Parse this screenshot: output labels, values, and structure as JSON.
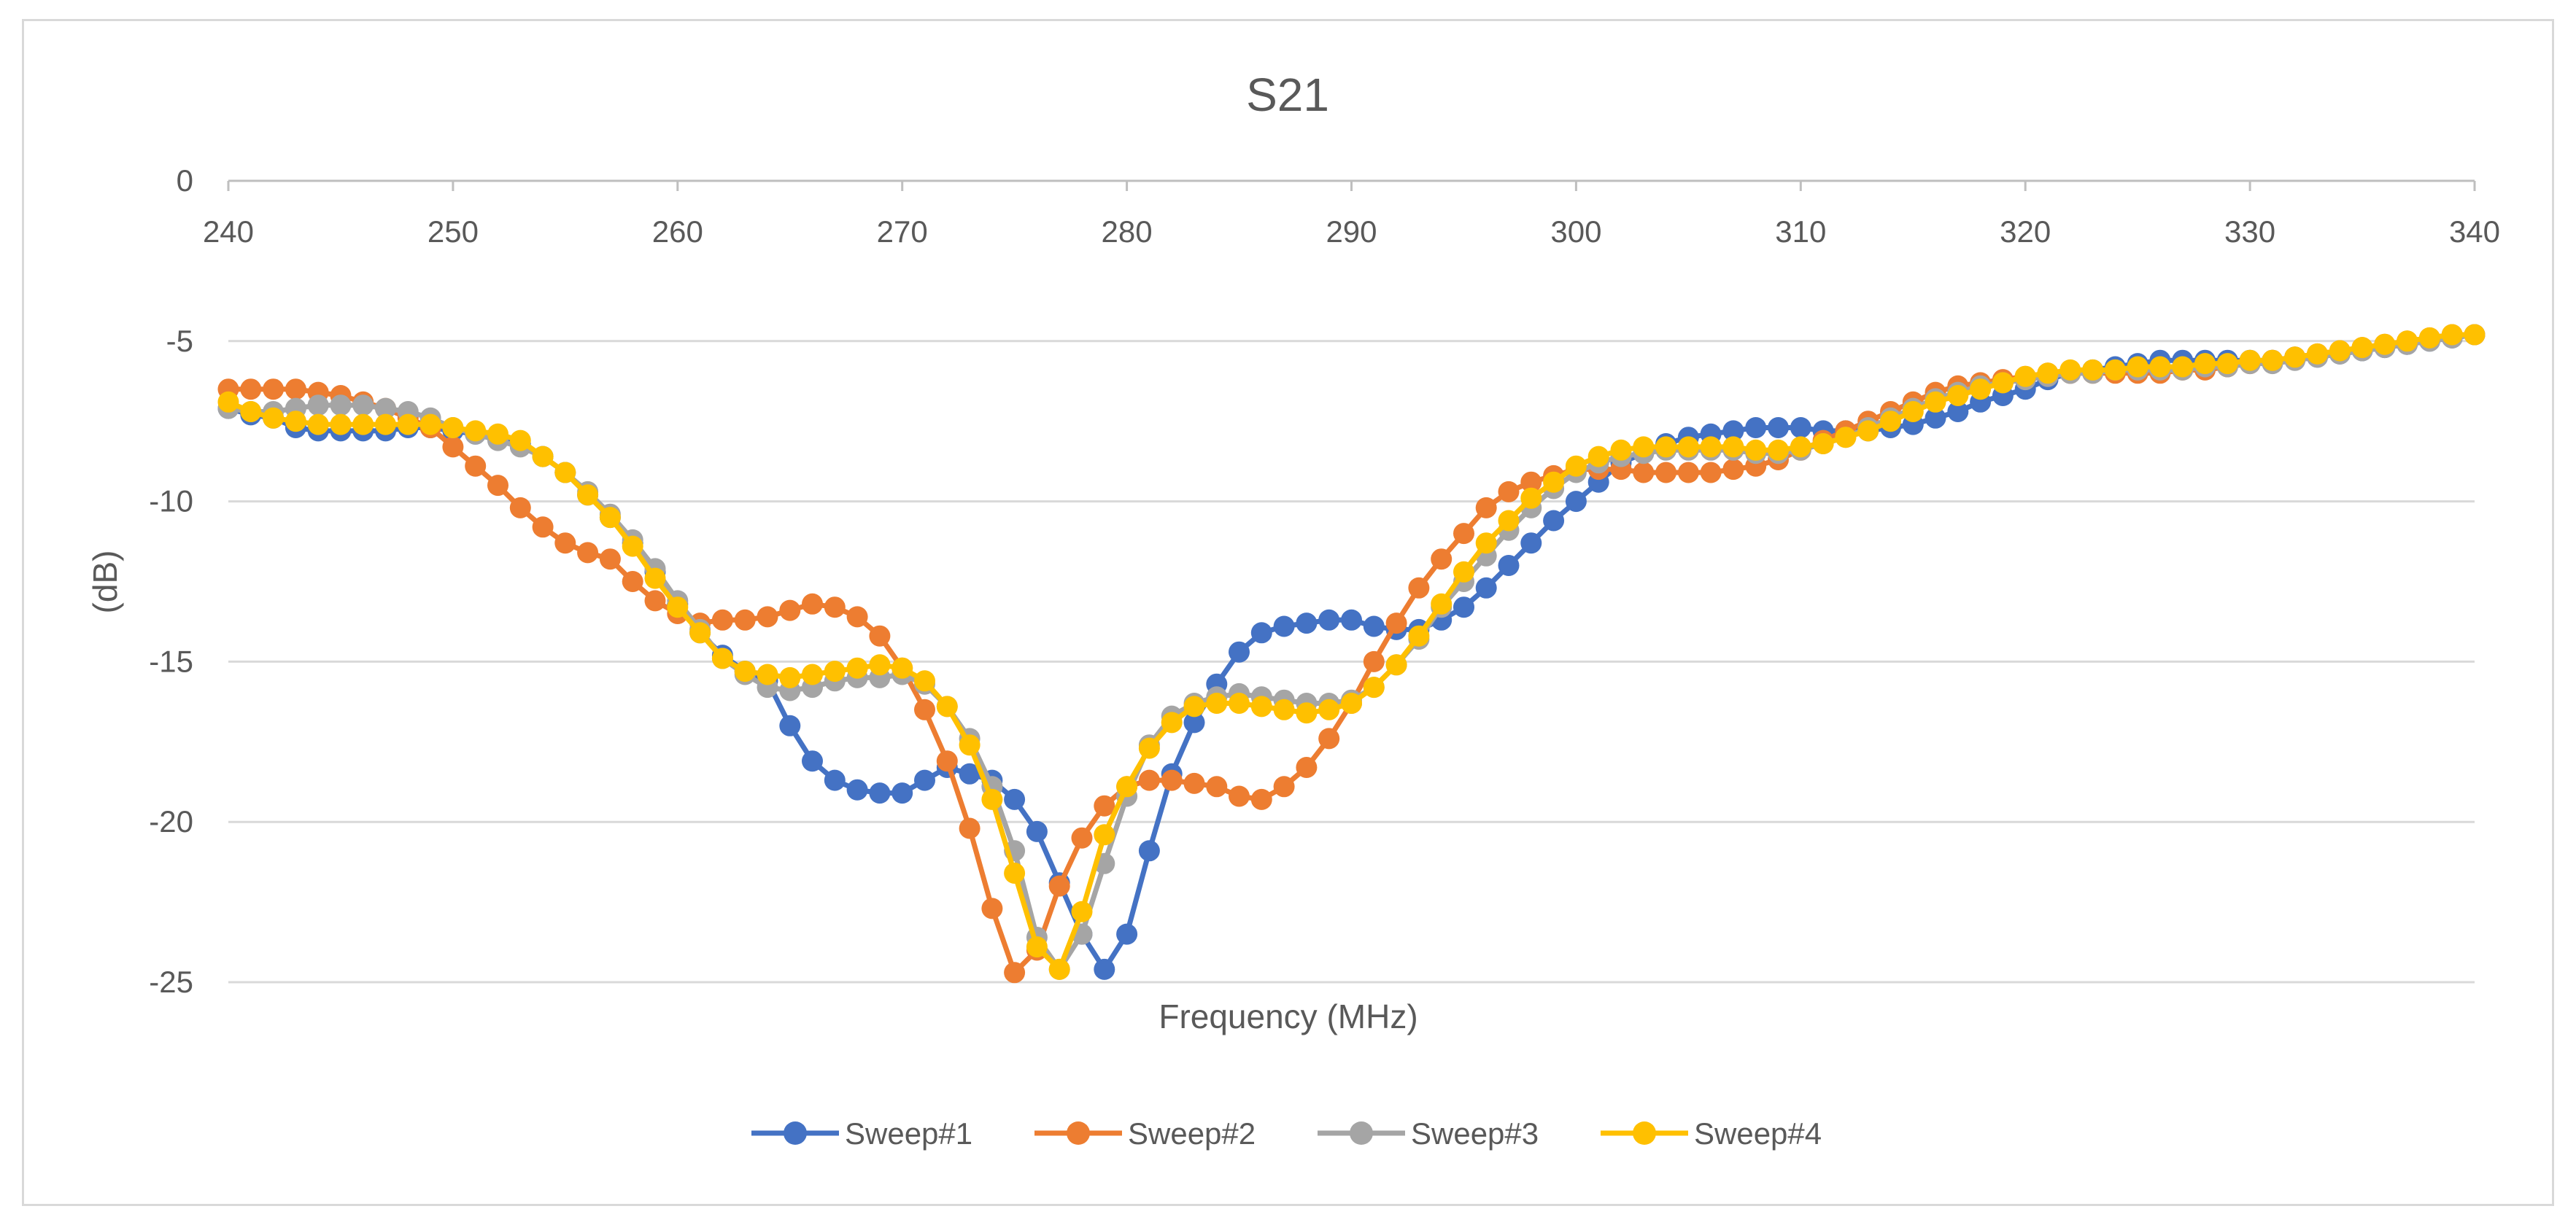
{
  "chart_data": {
    "type": "line",
    "title": "S21",
    "xlabel": "Frequency (MHz)",
    "ylabel": "(dB)",
    "xlim": [
      240,
      340
    ],
    "ylim": [
      -25,
      0
    ],
    "xticks": [
      240,
      250,
      260,
      270,
      280,
      290,
      300,
      310,
      320,
      330,
      340
    ],
    "yticks": [
      0,
      -5,
      -10,
      -15,
      -20,
      -25
    ],
    "grid": true,
    "legend_position": "bottom",
    "x": [
      240,
      241,
      242,
      243,
      244,
      245,
      246,
      247,
      248,
      249,
      250,
      251,
      252,
      253,
      254,
      255,
      256,
      257,
      258,
      259,
      260,
      261,
      262,
      263,
      264,
      265,
      266,
      267,
      268,
      269,
      270,
      271,
      272,
      273,
      274,
      275,
      276,
      277,
      278,
      279,
      280,
      281,
      282,
      283,
      284,
      285,
      286,
      287,
      288,
      289,
      290,
      291,
      292,
      293,
      294,
      295,
      296,
      297,
      298,
      299,
      300,
      301,
      302,
      303,
      304,
      305,
      306,
      307,
      308,
      309,
      310,
      311,
      312,
      313,
      314,
      315,
      316,
      317,
      318,
      319,
      320,
      321,
      322,
      323,
      324,
      325,
      326,
      327,
      328,
      329,
      330,
      331,
      332,
      333,
      334,
      335,
      336,
      337,
      338,
      339,
      340
    ],
    "series": [
      {
        "name": "Sweep#1",
        "color": "#4472c4",
        "values": [
          -7.1,
          -7.3,
          -7.4,
          -7.7,
          -7.8,
          -7.8,
          -7.8,
          -7.8,
          -7.7,
          -7.7,
          -7.8,
          -7.9,
          -8.0,
          -8.2,
          -8.6,
          -9.1,
          -9.8,
          -10.5,
          -11.3,
          -12.2,
          -13.2,
          -14.1,
          -14.8,
          -15.3,
          -15.6,
          -17.0,
          -18.1,
          -18.7,
          -19.0,
          -19.1,
          -19.1,
          -18.7,
          -18.3,
          -18.5,
          -18.7,
          -19.3,
          -20.3,
          -21.9,
          -23.5,
          -24.6,
          -23.5,
          -20.9,
          -18.5,
          -16.9,
          -15.7,
          -14.7,
          -14.1,
          -13.9,
          -13.8,
          -13.7,
          -13.7,
          -13.9,
          -14.0,
          -14.0,
          -13.7,
          -13.3,
          -12.7,
          -12.0,
          -11.3,
          -10.6,
          -10.0,
          -9.4,
          -8.8,
          -8.5,
          -8.2,
          -8.0,
          -7.9,
          -7.8,
          -7.7,
          -7.7,
          -7.7,
          -7.8,
          -7.8,
          -7.8,
          -7.7,
          -7.6,
          -7.4,
          -7.2,
          -6.9,
          -6.7,
          -6.5,
          -6.2,
          -6.0,
          -5.9,
          -5.8,
          -5.7,
          -5.6,
          -5.6,
          -5.6,
          -5.6,
          -5.6,
          -5.6,
          -5.5,
          -5.5,
          -5.4,
          -5.3,
          -5.2,
          -5.1,
          -5.0,
          -4.9,
          -4.8
        ]
      },
      {
        "name": "Sweep#2",
        "color": "#ed7d31",
        "values": [
          -6.5,
          -6.5,
          -6.5,
          -6.5,
          -6.6,
          -6.7,
          -6.9,
          -7.1,
          -7.4,
          -7.7,
          -8.3,
          -8.9,
          -9.5,
          -10.2,
          -10.8,
          -11.3,
          -11.6,
          -11.8,
          -12.5,
          -13.1,
          -13.5,
          -13.8,
          -13.7,
          -13.7,
          -13.6,
          -13.4,
          -13.2,
          -13.3,
          -13.6,
          -14.2,
          -15.2,
          -16.5,
          -18.1,
          -20.2,
          -22.7,
          -24.7,
          -24.0,
          -22.0,
          -20.5,
          -19.5,
          -18.9,
          -18.7,
          -18.7,
          -18.8,
          -18.9,
          -19.2,
          -19.3,
          -18.9,
          -18.3,
          -17.4,
          -16.3,
          -15.0,
          -13.8,
          -12.7,
          -11.8,
          -11.0,
          -10.2,
          -9.7,
          -9.4,
          -9.2,
          -9.0,
          -9.0,
          -9.0,
          -9.1,
          -9.1,
          -9.1,
          -9.1,
          -9.0,
          -8.9,
          -8.7,
          -8.4,
          -8.1,
          -7.8,
          -7.5,
          -7.2,
          -6.9,
          -6.6,
          -6.4,
          -6.3,
          -6.2,
          -6.1,
          -6.0,
          -6.0,
          -6.0,
          -6.0,
          -6.0,
          -6.0,
          -5.9,
          -5.9,
          -5.8,
          -5.7,
          -5.6,
          -5.5,
          -5.4,
          -5.3,
          -5.2,
          -5.1,
          -5.0,
          -4.9,
          -4.8,
          -4.8
        ]
      },
      {
        "name": "Sweep#3",
        "color": "#a5a5a5",
        "values": [
          -7.1,
          -7.2,
          -7.2,
          -7.1,
          -7.0,
          -7.0,
          -7.0,
          -7.1,
          -7.2,
          -7.4,
          -7.7,
          -7.9,
          -8.1,
          -8.3,
          -8.6,
          -9.1,
          -9.7,
          -10.4,
          -11.2,
          -12.1,
          -13.1,
          -14.0,
          -14.9,
          -15.4,
          -15.8,
          -15.9,
          -15.8,
          -15.6,
          -15.5,
          -15.5,
          -15.4,
          -15.7,
          -16.4,
          -17.4,
          -18.9,
          -20.9,
          -23.6,
          -24.6,
          -23.5,
          -21.3,
          -19.2,
          -17.6,
          -16.7,
          -16.3,
          -16.1,
          -16.0,
          -16.1,
          -16.2,
          -16.3,
          -16.3,
          -16.2,
          -15.8,
          -15.1,
          -14.3,
          -13.3,
          -12.5,
          -11.7,
          -10.9,
          -10.2,
          -9.6,
          -9.1,
          -8.8,
          -8.6,
          -8.5,
          -8.4,
          -8.4,
          -8.4,
          -8.4,
          -8.5,
          -8.5,
          -8.4,
          -8.2,
          -8.0,
          -7.7,
          -7.4,
          -7.1,
          -6.8,
          -6.6,
          -6.4,
          -6.3,
          -6.2,
          -6.1,
          -6.0,
          -6.0,
          -5.9,
          -5.9,
          -5.9,
          -5.9,
          -5.8,
          -5.8,
          -5.7,
          -5.7,
          -5.6,
          -5.5,
          -5.4,
          -5.3,
          -5.2,
          -5.1,
          -5.0,
          -4.9,
          -4.8
        ]
      },
      {
        "name": "Sweep#4",
        "color": "#ffc000",
        "values": [
          -6.9,
          -7.2,
          -7.4,
          -7.5,
          -7.6,
          -7.6,
          -7.6,
          -7.6,
          -7.6,
          -7.6,
          -7.7,
          -7.8,
          -7.9,
          -8.1,
          -8.6,
          -9.1,
          -9.8,
          -10.5,
          -11.4,
          -12.4,
          -13.3,
          -14.1,
          -14.9,
          -15.3,
          -15.4,
          -15.5,
          -15.4,
          -15.3,
          -15.2,
          -15.1,
          -15.2,
          -15.6,
          -16.4,
          -17.6,
          -19.3,
          -21.6,
          -23.9,
          -24.6,
          -22.8,
          -20.4,
          -18.9,
          -17.7,
          -16.9,
          -16.4,
          -16.3,
          -16.3,
          -16.4,
          -16.5,
          -16.6,
          -16.5,
          -16.3,
          -15.8,
          -15.1,
          -14.2,
          -13.2,
          -12.2,
          -11.3,
          -10.6,
          -9.9,
          -9.4,
          -8.9,
          -8.6,
          -8.4,
          -8.3,
          -8.3,
          -8.3,
          -8.3,
          -8.3,
          -8.4,
          -8.4,
          -8.3,
          -8.2,
          -8.0,
          -7.8,
          -7.5,
          -7.2,
          -6.9,
          -6.7,
          -6.5,
          -6.3,
          -6.1,
          -6.0,
          -5.9,
          -5.9,
          -5.9,
          -5.8,
          -5.8,
          -5.8,
          -5.7,
          -5.7,
          -5.6,
          -5.6,
          -5.5,
          -5.4,
          -5.3,
          -5.2,
          -5.1,
          -5.0,
          -4.9,
          -4.8,
          -4.8
        ]
      }
    ]
  }
}
